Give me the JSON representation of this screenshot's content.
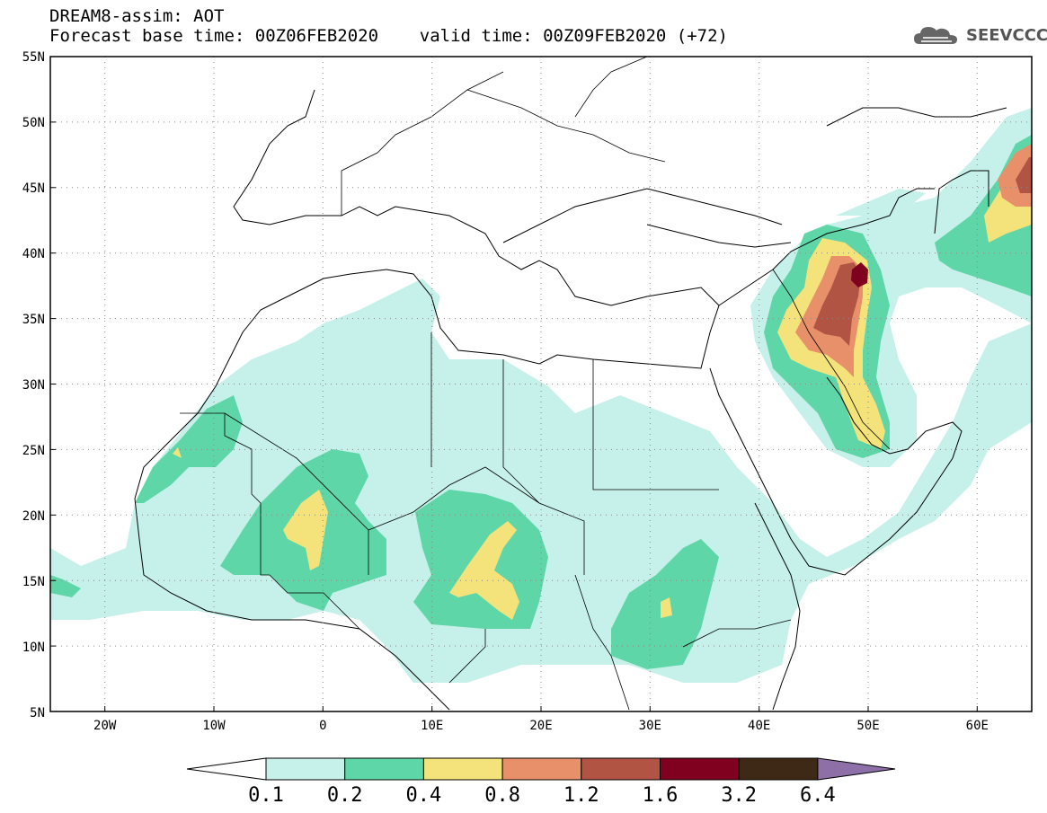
{
  "header": {
    "line1": "DREAM8-assim: AOT",
    "line2": "Forecast base time: 00Z06FEB2020    valid time: 00Z09FEB2020 (+72)"
  },
  "logo": {
    "text": "SEEVCCC",
    "icon": "cloud-icon"
  },
  "map": {
    "lon_range": [
      -25,
      65
    ],
    "lat_range": [
      5,
      55
    ],
    "lat_ticks": [
      "55N",
      "50N",
      "45N",
      "40N",
      "35N",
      "30N",
      "25N",
      "20N",
      "15N",
      "10N",
      "5N"
    ],
    "lon_ticks": [
      "20W",
      "10W",
      "0",
      "10E",
      "20E",
      "30E",
      "40E",
      "50E",
      "60E"
    ],
    "grid": "dotted"
  },
  "colorbar": {
    "labels": [
      "0.1",
      "0.2",
      "0.4",
      "0.8",
      "1.2",
      "1.6",
      "3.2",
      "6.4"
    ],
    "colors": [
      "#c6f1ea",
      "#5fd6a8",
      "#f3e37a",
      "#e8906a",
      "#b25443",
      "#800020",
      "#3e2816"
    ],
    "over_color": "#8e6fa8",
    "under_color": "#ffffff"
  },
  "chart_data": {
    "type": "heatmap",
    "variable": "AOT",
    "levels": [
      0.1,
      0.2,
      0.4,
      0.8,
      1.2,
      1.6,
      3.2,
      6.4
    ],
    "regions": [
      {
        "lon": 49.5,
        "lat": 38.5,
        "max_level": 3.2
      },
      {
        "lon": 47,
        "lat": 33,
        "max_level": 1.6
      },
      {
        "lon": 48,
        "lat": 28,
        "max_level": 0.8
      },
      {
        "lon": 63,
        "lat": 45,
        "max_level": 1.2
      },
      {
        "lon": -1,
        "lat": 19.5,
        "max_level": 0.8
      },
      {
        "lon": 16,
        "lat": 16,
        "max_level": 0.8
      },
      {
        "lon": 33,
        "lat": 12,
        "max_level": 0.4
      },
      {
        "lon": -13,
        "lat": 24.5,
        "max_level": 0.4
      }
    ]
  }
}
